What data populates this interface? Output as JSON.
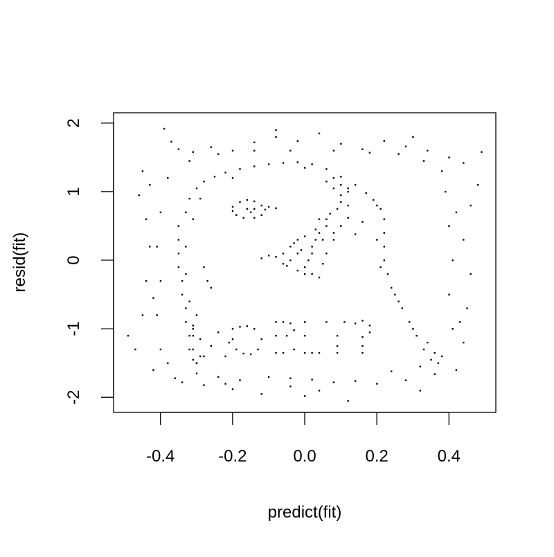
{
  "chart_data": {
    "type": "scatter",
    "title": "",
    "xlabel": "predict(fit)",
    "ylabel": "resid(fit)",
    "xlim": [
      -0.53,
      0.53
    ],
    "ylim": [
      -2.22,
      2.15
    ],
    "xticks": [
      -0.4,
      -0.2,
      0.0,
      0.2,
      0.4
    ],
    "xtick_labels": [
      "-0.4",
      "-0.2",
      "0.0",
      "0.2",
      "0.4"
    ],
    "yticks": [
      -2,
      -1,
      0,
      1,
      2
    ],
    "ytick_labels": [
      "-2",
      "-1",
      "0",
      "1",
      "2"
    ],
    "grid": false,
    "point_color": "#000000",
    "series": [
      {
        "points": [
          [
            -0.39,
            1.92
          ],
          [
            -0.37,
            1.73
          ],
          [
            -0.35,
            1.62
          ],
          [
            -0.31,
            1.58
          ],
          [
            -0.26,
            1.65
          ],
          [
            -0.2,
            1.6
          ],
          [
            -0.14,
            1.72
          ],
          [
            -0.08,
            1.8
          ],
          [
            -0.02,
            1.74
          ],
          [
            0.04,
            1.85
          ],
          [
            0.1,
            1.7
          ],
          [
            0.16,
            1.62
          ],
          [
            0.22,
            1.74
          ],
          [
            0.28,
            1.66
          ],
          [
            0.34,
            1.6
          ],
          [
            0.4,
            1.5
          ],
          [
            0.44,
            1.42
          ],
          [
            0.49,
            1.58
          ],
          [
            -0.45,
            1.3
          ],
          [
            -0.46,
            0.95
          ],
          [
            -0.44,
            0.6
          ],
          [
            -0.43,
            0.2
          ],
          [
            -0.44,
            -0.3
          ],
          [
            -0.45,
            -0.8
          ],
          [
            -0.47,
            -1.3
          ],
          [
            -0.49,
            -1.1
          ],
          [
            -0.42,
            -1.6
          ],
          [
            -0.36,
            -1.72
          ],
          [
            -0.28,
            -1.82
          ],
          [
            -0.2,
            -1.88
          ],
          [
            -0.12,
            -1.95
          ],
          [
            -0.04,
            -1.84
          ],
          [
            0.04,
            -1.9
          ],
          [
            0.12,
            -2.05
          ],
          [
            0.2,
            -1.8
          ],
          [
            0.28,
            -1.75
          ],
          [
            0.36,
            -1.66
          ],
          [
            0.42,
            -1.6
          ],
          [
            0.44,
            -1.2
          ],
          [
            0.45,
            -0.7
          ],
          [
            0.46,
            -0.2
          ],
          [
            0.44,
            0.3
          ],
          [
            0.46,
            0.8
          ],
          [
            0.48,
            1.1
          ],
          [
            -0.34,
            -1.78
          ],
          [
            -0.3,
            -1.65
          ],
          [
            -0.24,
            -1.7
          ],
          [
            -0.18,
            -1.75
          ],
          [
            -0.1,
            -1.7
          ],
          [
            -0.04,
            -1.72
          ],
          [
            0.02,
            -1.74
          ],
          [
            0.08,
            -1.78
          ],
          [
            0.14,
            -1.76
          ],
          [
            0.24,
            -1.62
          ],
          [
            0.32,
            -1.55
          ],
          [
            0.38,
            -1.4
          ],
          [
            0.41,
            -1.0
          ],
          [
            0.4,
            -0.5
          ],
          [
            0.41,
            0.0
          ],
          [
            0.4,
            0.5
          ],
          [
            0.39,
            1.0
          ],
          [
            0.38,
            1.3
          ],
          [
            0.33,
            1.45
          ],
          [
            0.26,
            1.55
          ],
          [
            0.18,
            1.57
          ],
          [
            0.08,
            1.6
          ],
          [
            -0.04,
            1.6
          ],
          [
            -0.14,
            1.6
          ],
          [
            -0.24,
            1.55
          ],
          [
            -0.32,
            1.45
          ],
          [
            -0.38,
            1.2
          ],
          [
            -0.4,
            0.7
          ],
          [
            -0.41,
            0.2
          ],
          [
            -0.4,
            -0.3
          ],
          [
            -0.41,
            -0.8
          ],
          [
            -0.4,
            -1.3
          ],
          [
            -0.42,
            -0.55
          ],
          [
            -0.43,
            1.1
          ],
          [
            -0.38,
            -1.5
          ],
          [
            -0.22,
            -1.8
          ],
          [
            0.0,
            -1.98
          ],
          [
            0.32,
            -1.9
          ],
          [
            0.43,
            -0.9
          ],
          [
            0.42,
            0.7
          ],
          [
            0.3,
            1.8
          ],
          [
            -0.08,
            1.9
          ]
        ]
      },
      {
        "points": [
          [
            -0.35,
            0.5
          ],
          [
            -0.35,
            0.3
          ],
          [
            -0.35,
            0.1
          ],
          [
            -0.35,
            -0.1
          ],
          [
            -0.34,
            -0.3
          ],
          [
            -0.34,
            -0.5
          ],
          [
            -0.33,
            -0.7
          ],
          [
            -0.33,
            -0.9
          ],
          [
            -0.32,
            -1.1
          ],
          [
            -0.32,
            -1.3
          ],
          [
            -0.31,
            -1.45
          ],
          [
            -0.3,
            -1.5
          ],
          [
            -0.33,
            0.7
          ],
          [
            -0.32,
            0.9
          ],
          [
            -0.3,
            1.05
          ],
          [
            -0.28,
            1.15
          ],
          [
            -0.25,
            1.22
          ],
          [
            -0.22,
            1.28
          ],
          [
            -0.18,
            1.33
          ],
          [
            -0.14,
            1.37
          ],
          [
            -0.1,
            1.4
          ],
          [
            -0.06,
            1.42
          ],
          [
            -0.02,
            1.43
          ],
          [
            0.02,
            1.4
          ],
          [
            0.06,
            1.33
          ],
          [
            0.1,
            1.22
          ],
          [
            0.14,
            1.1
          ],
          [
            0.17,
            0.98
          ],
          [
            0.19,
            0.88
          ],
          [
            0.21,
            0.75
          ],
          [
            0.22,
            0.6
          ],
          [
            0.22,
            0.4
          ],
          [
            0.22,
            0.2
          ],
          [
            0.22,
            0.0
          ],
          [
            0.23,
            -0.2
          ],
          [
            0.24,
            -0.4
          ],
          [
            0.25,
            -0.5
          ],
          [
            0.27,
            -0.7
          ],
          [
            0.29,
            -0.9
          ],
          [
            0.31,
            -1.1
          ],
          [
            0.33,
            -1.3
          ],
          [
            0.35,
            -1.45
          ],
          [
            0.37,
            -1.5
          ],
          [
            -0.33,
            0.2
          ],
          [
            -0.33,
            -0.2
          ],
          [
            -0.32,
            -0.6
          ],
          [
            -0.31,
            -1.0
          ],
          [
            -0.29,
            -1.4
          ],
          [
            -0.31,
            0.6
          ],
          [
            -0.29,
            0.9
          ],
          [
            -0.2,
            1.2
          ],
          [
            0.0,
            1.35
          ],
          [
            0.08,
            1.2
          ],
          [
            0.12,
            1.05
          ],
          [
            0.2,
            0.8
          ],
          [
            0.2,
            0.3
          ],
          [
            0.21,
            -0.1
          ],
          [
            0.26,
            -0.6
          ],
          [
            0.3,
            -1.0
          ],
          [
            0.34,
            -1.2
          ],
          [
            0.36,
            -1.35
          ],
          [
            -0.27,
            -0.3
          ],
          [
            -0.28,
            -0.1
          ],
          [
            -0.26,
            -0.4
          ],
          [
            -0.3,
            -0.8
          ]
        ]
      },
      {
        "points": [
          [
            -0.2,
            0.78
          ],
          [
            -0.18,
            0.85
          ],
          [
            -0.16,
            0.88
          ],
          [
            -0.14,
            0.86
          ],
          [
            -0.12,
            0.8
          ],
          [
            -0.11,
            0.74
          ],
          [
            -0.12,
            0.66
          ],
          [
            -0.14,
            0.62
          ],
          [
            -0.17,
            0.62
          ],
          [
            -0.19,
            0.66
          ],
          [
            -0.2,
            0.72
          ],
          [
            -0.16,
            0.75
          ],
          [
            -0.14,
            0.75
          ],
          [
            -0.1,
            0.78
          ],
          [
            -0.08,
            0.76
          ],
          [
            -0.15,
            0.7
          ]
        ]
      },
      {
        "points": [
          [
            0.06,
            1.15
          ],
          [
            0.08,
            1.05
          ],
          [
            0.1,
            0.95
          ],
          [
            0.1,
            0.85
          ],
          [
            0.09,
            0.75
          ],
          [
            0.07,
            0.68
          ],
          [
            0.12,
            0.8
          ],
          [
            0.04,
            0.6
          ],
          [
            0.06,
            0.5
          ],
          [
            0.04,
            0.4
          ],
          [
            0.03,
            0.3
          ],
          [
            0.02,
            0.2
          ],
          [
            0.02,
            0.1
          ],
          [
            0.01,
            0.0
          ],
          [
            0.0,
            -0.1
          ],
          [
            0.02,
            -0.2
          ],
          [
            0.04,
            -0.25
          ],
          [
            -0.02,
            0.3
          ],
          [
            -0.04,
            0.2
          ],
          [
            -0.06,
            0.1
          ],
          [
            -0.08,
            0.05
          ],
          [
            -0.12,
            0.03
          ],
          [
            -0.06,
            -0.05
          ],
          [
            -0.02,
            -0.15
          ],
          [
            0.0,
            -0.2
          ],
          [
            -0.01,
            0.15
          ],
          [
            0.0,
            0.35
          ],
          [
            0.03,
            0.45
          ],
          [
            0.05,
            0.3
          ],
          [
            0.06,
            0.1
          ],
          [
            0.05,
            -0.05
          ],
          [
            -0.1,
            0.07
          ],
          [
            -0.04,
            0.0
          ],
          [
            -0.02,
            0.1
          ],
          [
            0.08,
            0.4
          ],
          [
            0.06,
            0.6
          ],
          [
            0.08,
            0.3
          ],
          [
            -0.03,
            0.25
          ],
          [
            -0.05,
            -0.08
          ],
          [
            0.1,
            0.5
          ],
          [
            0.14,
            0.38
          ],
          [
            0.16,
            0.56
          ],
          [
            0.12,
            0.62
          ],
          [
            0.1,
            1.1
          ],
          [
            0.12,
            1.0
          ]
        ]
      },
      {
        "points": [
          [
            -0.31,
            -1.3
          ],
          [
            -0.31,
            -1.1
          ],
          [
            -0.31,
            -0.95
          ],
          [
            -0.3,
            -1.5
          ],
          [
            -0.29,
            -1.15
          ],
          [
            -0.28,
            -1.4
          ],
          [
            -0.26,
            -1.25
          ],
          [
            -0.24,
            -1.05
          ],
          [
            -0.22,
            -1.4
          ],
          [
            -0.21,
            -1.2
          ],
          [
            -0.2,
            -1.0
          ],
          [
            -0.2,
            -1.15
          ],
          [
            -0.18,
            -0.97
          ],
          [
            -0.16,
            -0.96
          ],
          [
            -0.14,
            -1.0
          ],
          [
            -0.12,
            -1.15
          ],
          [
            -0.13,
            -1.3
          ],
          [
            -0.15,
            -1.37
          ],
          [
            -0.17,
            -1.36
          ],
          [
            -0.19,
            -1.3
          ],
          [
            -0.08,
            -0.9
          ],
          [
            -0.08,
            -1.1
          ],
          [
            -0.08,
            -1.35
          ],
          [
            -0.06,
            -0.9
          ],
          [
            -0.04,
            -0.92
          ],
          [
            -0.03,
            -1.02
          ],
          [
            -0.05,
            -1.1
          ],
          [
            -0.03,
            -1.3
          ],
          [
            -0.06,
            -1.35
          ],
          [
            0.0,
            -0.9
          ],
          [
            0.0,
            -1.1
          ],
          [
            0.0,
            -1.35
          ],
          [
            0.02,
            -1.35
          ],
          [
            0.04,
            -1.35
          ],
          [
            0.06,
            -0.9
          ],
          [
            0.09,
            -1.1
          ],
          [
            0.11,
            -0.9
          ],
          [
            0.09,
            -1.25
          ],
          [
            0.09,
            -1.35
          ],
          [
            0.14,
            -0.92
          ],
          [
            0.16,
            -0.88
          ],
          [
            0.18,
            -0.95
          ],
          [
            0.18,
            -1.05
          ],
          [
            0.16,
            -1.12
          ],
          [
            0.16,
            -1.25
          ],
          [
            0.16,
            -1.35
          ]
        ]
      }
    ]
  }
}
